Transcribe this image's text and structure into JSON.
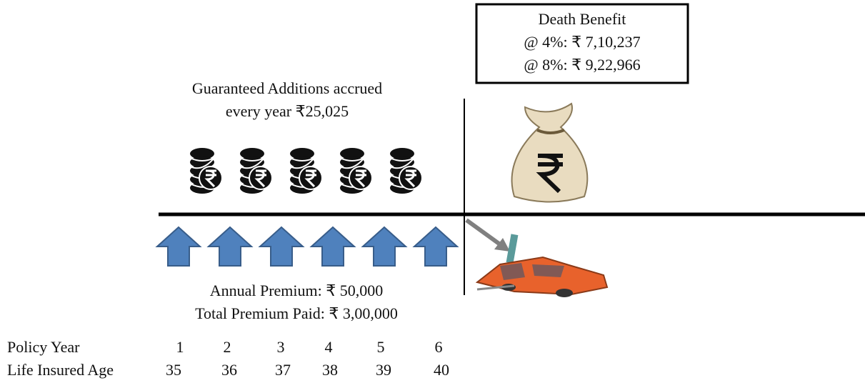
{
  "death_benefit": {
    "title": "Death Benefit",
    "lines": [
      "@ 4%: ₹ 7,10,237",
      "@ 8%: ₹ 9,22,966"
    ]
  },
  "guaranteed_additions": {
    "lines": [
      "Guaranteed Additions accrued",
      "every year ₹25,025"
    ]
  },
  "premium": {
    "lines": [
      "Annual Premium: ₹ 50,000",
      "Total Premium Paid: ₹ 3,00,000"
    ]
  },
  "table": {
    "rows": [
      {
        "label": "Policy Year",
        "values": [
          1,
          2,
          3,
          4,
          5,
          6
        ]
      },
      {
        "label": "Life Insured Age",
        "values": [
          35,
          36,
          37,
          38,
          39,
          40
        ]
      }
    ]
  }
}
